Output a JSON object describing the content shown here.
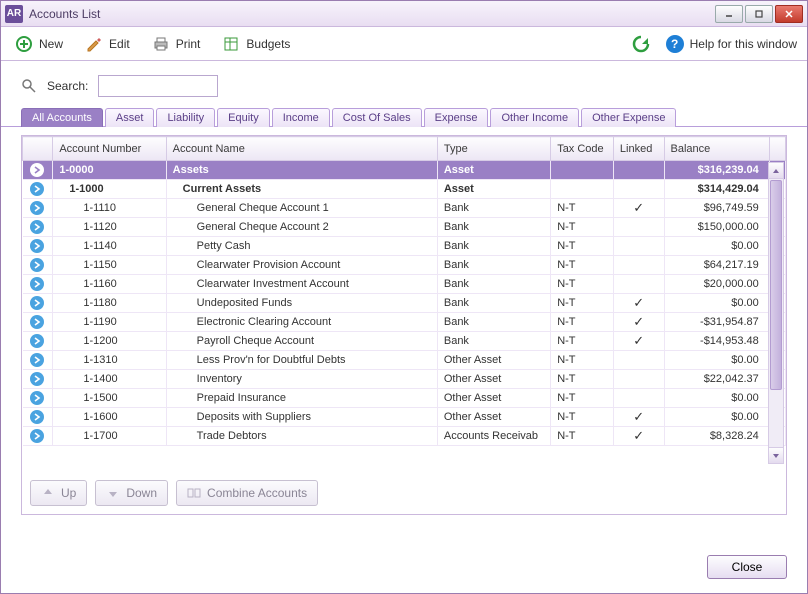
{
  "window": {
    "app_badge": "AR",
    "title": "Accounts List"
  },
  "toolbar": {
    "new": "New",
    "edit": "Edit",
    "print": "Print",
    "budgets": "Budgets",
    "help": "Help for this window"
  },
  "search": {
    "label": "Search:",
    "value": ""
  },
  "tabs": {
    "items": [
      "All Accounts",
      "Asset",
      "Liability",
      "Equity",
      "Income",
      "Cost Of Sales",
      "Expense",
      "Other Income",
      "Other Expense"
    ],
    "active_index": 0
  },
  "columns": {
    "acct_no": "Account Number",
    "acct_name": "Account Name",
    "type": "Type",
    "tax": "Tax Code",
    "linked": "Linked",
    "balance": "Balance"
  },
  "rows": [
    {
      "kind": "header",
      "arrowWhite": true,
      "no": "1-0000",
      "name": "Assets",
      "type": "Asset",
      "tax": "",
      "linked": false,
      "balance": "$316,239.04"
    },
    {
      "kind": "section",
      "no": "1-1000",
      "name": "Current Assets",
      "type": "Asset",
      "tax": "",
      "linked": false,
      "balance": "$314,429.04"
    },
    {
      "kind": "row",
      "no": "1-1110",
      "name": "General Cheque Account 1",
      "type": "Bank",
      "tax": "N-T",
      "linked": true,
      "balance": "$96,749.59"
    },
    {
      "kind": "row",
      "no": "1-1120",
      "name": "General Cheque Account 2",
      "type": "Bank",
      "tax": "N-T",
      "linked": false,
      "balance": "$150,000.00"
    },
    {
      "kind": "row",
      "no": "1-1140",
      "name": "Petty Cash",
      "type": "Bank",
      "tax": "N-T",
      "linked": false,
      "balance": "$0.00"
    },
    {
      "kind": "row",
      "no": "1-1150",
      "name": "Clearwater Provision Account",
      "type": "Bank",
      "tax": "N-T",
      "linked": false,
      "balance": "$64,217.19"
    },
    {
      "kind": "row",
      "no": "1-1160",
      "name": "Clearwater Investment Account",
      "type": "Bank",
      "tax": "N-T",
      "linked": false,
      "balance": "$20,000.00"
    },
    {
      "kind": "row",
      "no": "1-1180",
      "name": "Undeposited Funds",
      "type": "Bank",
      "tax": "N-T",
      "linked": true,
      "balance": "$0.00"
    },
    {
      "kind": "row",
      "no": "1-1190",
      "name": "Electronic Clearing Account",
      "type": "Bank",
      "tax": "N-T",
      "linked": true,
      "balance": "-$31,954.87"
    },
    {
      "kind": "row",
      "no": "1-1200",
      "name": "Payroll Cheque Account",
      "type": "Bank",
      "tax": "N-T",
      "linked": true,
      "balance": "-$14,953.48"
    },
    {
      "kind": "row",
      "no": "1-1310",
      "name": "Less Prov'n for Doubtful Debts",
      "type": "Other Asset",
      "tax": "N-T",
      "linked": false,
      "balance": "$0.00"
    },
    {
      "kind": "row",
      "no": "1-1400",
      "name": "Inventory",
      "type": "Other Asset",
      "tax": "N-T",
      "linked": false,
      "balance": "$22,042.37"
    },
    {
      "kind": "row",
      "no": "1-1500",
      "name": "Prepaid Insurance",
      "type": "Other Asset",
      "tax": "N-T",
      "linked": false,
      "balance": "$0.00"
    },
    {
      "kind": "row",
      "no": "1-1600",
      "name": "Deposits with Suppliers",
      "type": "Other Asset",
      "tax": "N-T",
      "linked": true,
      "balance": "$0.00"
    },
    {
      "kind": "row",
      "no": "1-1700",
      "name": "Trade Debtors",
      "type": "Accounts Receivab",
      "tax": "N-T",
      "linked": true,
      "balance": "$8,328.24"
    }
  ],
  "panel_buttons": {
    "up": "Up",
    "down": "Down",
    "combine": "Combine Accounts"
  },
  "footer": {
    "close": "Close"
  },
  "colors": {
    "accent": "#9a80c5",
    "border": "#cbb8dd",
    "tab_border": "#b89edb",
    "header_grad_top": "#fdfdfe",
    "header_grad_bot": "#ece6f4",
    "close_btn": "#c33b2c"
  }
}
